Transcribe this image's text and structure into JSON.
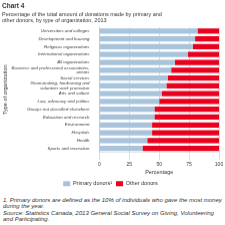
{
  "chart_data": {
    "type": "bar",
    "orientation": "horizontal",
    "stacked": true,
    "title": "Chart 4",
    "subtitle": [
      "Percentage of the total amount of donations made by primary and",
      "other donors, by type of organization, 2013"
    ],
    "xlabel": "Percentage",
    "ylabel": "Type of organization",
    "categories": [
      "Universities and colleges",
      "Development and housing",
      "Religious organizations",
      "International organizations",
      "All organizations",
      "Business and professional associations,\nunions",
      "Social services",
      "Grant-making, fundraising and\nvolunteer work promotion",
      "Arts and culture",
      "Law, advocacy and politics",
      "Groups not classified elsewhere",
      "Education and research",
      "Environment",
      "Hospitals",
      "Health",
      "Sports and recreation"
    ],
    "series": [
      {
        "name": "Primary donors¹",
        "color": "#a8c4dc",
        "values": [
          82,
          80,
          78,
          74,
          63,
          60,
          57,
          56,
          52,
          50,
          46,
          46,
          44,
          44,
          40,
          36
        ]
      },
      {
        "name": "Other donors",
        "color": "#e8001e",
        "values": [
          18,
          20,
          22,
          26,
          37,
          40,
          43,
          44,
          48,
          50,
          54,
          54,
          56,
          56,
          60,
          64
        ]
      }
    ],
    "xlim": [
      0,
      100
    ],
    "xticks": [
      0,
      25,
      50,
      75,
      100
    ],
    "grid": true,
    "legend": "bottom",
    "annotations": [
      "1. Primary donors are defined as the 10% of individuals who gave the most money during the year.",
      "Source: Statistics Canada, 2013 General Social Survey on Giving, Volunteering and Participating."
    ]
  }
}
